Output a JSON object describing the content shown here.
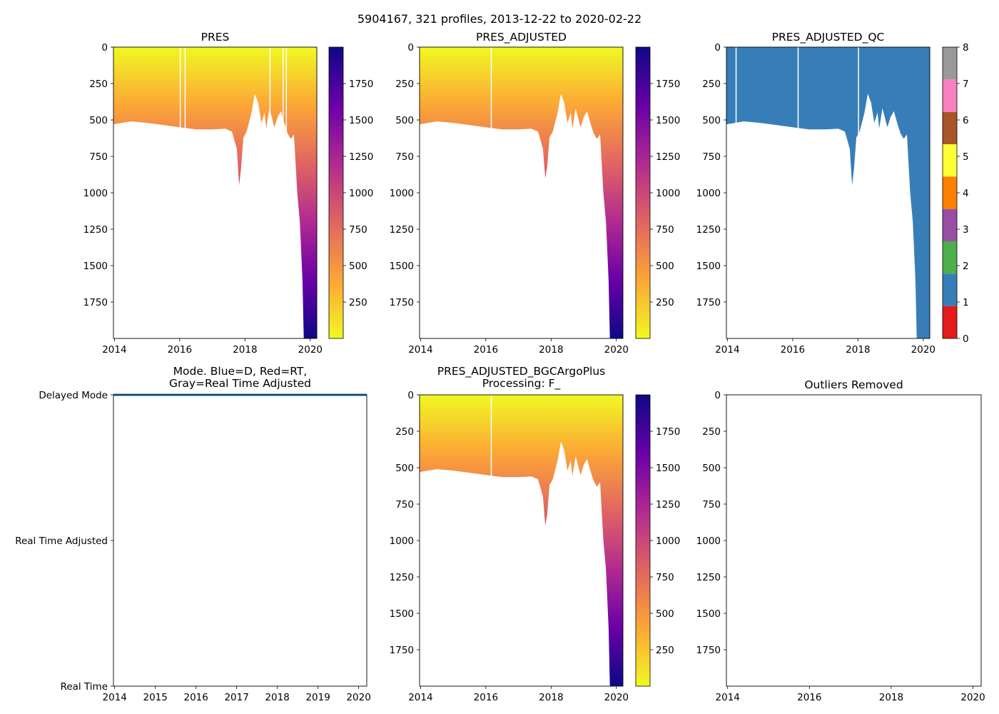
{
  "figure": {
    "title": "5904167, 321 profiles, 2013-12-22 to 2020-02-22"
  },
  "colors": {
    "plasma": [
      "#0d0887",
      "#6a00a8",
      "#b12a90",
      "#e16462",
      "#fca636",
      "#f0f921"
    ],
    "qc": [
      "#e41a1c",
      "#377eb8",
      "#4daf4a",
      "#984ea3",
      "#ff7f00",
      "#ffff33",
      "#a65628",
      "#f781bf",
      "#999999"
    ],
    "qc_good": "#377eb8",
    "mode_line": "#1f77b4"
  },
  "chart_data": [
    {
      "id": "pres",
      "type": "heatmap",
      "title": "PRES",
      "xlim": [
        2013.97,
        2020.2
      ],
      "xticks": [
        "2014",
        "2016",
        "2018",
        "2020"
      ],
      "ylim": [
        2000,
        0
      ],
      "yticks": [
        "0",
        "250",
        "500",
        "750",
        "1000",
        "1250",
        "1500",
        "1750"
      ],
      "colorbar": {
        "cmap": "plasma",
        "range": [
          0,
          2000
        ],
        "ticks": [
          "250",
          "500",
          "750",
          "1000",
          "1250",
          "1500",
          "1750"
        ]
      },
      "gaps": [
        2016.0,
        2016.15,
        2018.75,
        2019.15,
        2019.25
      ],
      "max_depth_profile": {
        "t": [
          2013.97,
          2014.5,
          2015.0,
          2015.5,
          2016.0,
          2016.5,
          2017.0,
          2017.4,
          2017.6,
          2017.75,
          2017.82,
          2017.88,
          2017.95,
          2018.05,
          2018.2,
          2018.3,
          2018.4,
          2018.5,
          2018.6,
          2018.65,
          2018.75,
          2018.9,
          2019.0,
          2019.1,
          2019.2,
          2019.3,
          2019.4,
          2019.5,
          2019.6,
          2019.68,
          2019.72,
          2019.76,
          2019.8,
          2019.85,
          2020.2
        ],
        "depth": [
          530,
          510,
          520,
          535,
          550,
          565,
          565,
          560,
          580,
          700,
          950,
          830,
          620,
          580,
          450,
          320,
          380,
          520,
          450,
          560,
          420,
          550,
          480,
          440,
          520,
          590,
          630,
          600,
          1000,
          1200,
          1400,
          1600,
          2000,
          2000,
          2000
        ]
      }
    },
    {
      "id": "pres_adj",
      "type": "heatmap",
      "title": "PRES_ADJUSTED",
      "xlim": [
        2013.97,
        2020.2
      ],
      "xticks": [
        "2014",
        "2016",
        "2018",
        "2020"
      ],
      "ylim": [
        2000,
        0
      ],
      "yticks": [
        "0",
        "250",
        "500",
        "750",
        "1000",
        "1250",
        "1500",
        "1750"
      ],
      "colorbar": {
        "cmap": "plasma",
        "range": [
          0,
          2000
        ],
        "ticks": [
          "250",
          "500",
          "750",
          "1000",
          "1250",
          "1500",
          "1750"
        ]
      },
      "gaps": [
        2016.15
      ],
      "max_depth_profile": {
        "t": [
          2013.97,
          2014.5,
          2015.0,
          2015.5,
          2016.0,
          2016.5,
          2017.0,
          2017.4,
          2017.6,
          2017.75,
          2017.82,
          2017.88,
          2017.95,
          2018.05,
          2018.2,
          2018.3,
          2018.4,
          2018.5,
          2018.6,
          2018.65,
          2018.75,
          2018.9,
          2019.0,
          2019.1,
          2019.2,
          2019.3,
          2019.4,
          2019.5,
          2019.6,
          2019.68,
          2019.72,
          2019.76,
          2019.8,
          2019.85,
          2020.2
        ],
        "depth": [
          530,
          510,
          520,
          535,
          550,
          565,
          565,
          560,
          580,
          700,
          900,
          820,
          620,
          580,
          450,
          320,
          380,
          520,
          450,
          560,
          420,
          550,
          480,
          440,
          520,
          590,
          630,
          600,
          1000,
          1200,
          1400,
          1600,
          2000,
          2000,
          2000
        ]
      }
    },
    {
      "id": "pres_qc",
      "type": "heatmap",
      "title": "PRES_ADJUSTED_QC",
      "xlim": [
        2013.97,
        2020.2
      ],
      "xticks": [
        "2014",
        "2016",
        "2018",
        "2020"
      ],
      "ylim": [
        2000,
        0
      ],
      "yticks": [
        "0",
        "250",
        "500",
        "750",
        "1000",
        "1250",
        "1500",
        "1750"
      ],
      "colorbar": {
        "cmap": "qc",
        "range": [
          0,
          8
        ],
        "ticks": [
          "0",
          "1",
          "2",
          "3",
          "4",
          "5",
          "6",
          "7",
          "8"
        ]
      },
      "qc_value": 1,
      "gaps": [
        2014.25,
        2016.15,
        2018.0
      ],
      "max_depth_profile": {
        "t": [
          2013.97,
          2014.5,
          2015.0,
          2015.5,
          2016.0,
          2016.5,
          2017.0,
          2017.4,
          2017.6,
          2017.75,
          2017.82,
          2017.88,
          2017.95,
          2018.05,
          2018.2,
          2018.3,
          2018.4,
          2018.5,
          2018.6,
          2018.65,
          2018.75,
          2018.9,
          2019.0,
          2019.1,
          2019.2,
          2019.3,
          2019.4,
          2019.5,
          2019.6,
          2019.68,
          2019.72,
          2019.76,
          2019.8,
          2019.85,
          2020.2
        ],
        "depth": [
          530,
          510,
          520,
          535,
          550,
          565,
          565,
          560,
          580,
          700,
          950,
          830,
          620,
          580,
          450,
          320,
          380,
          520,
          450,
          560,
          420,
          550,
          480,
          440,
          520,
          590,
          630,
          600,
          1000,
          1200,
          1400,
          1600,
          2000,
          2000,
          2000
        ]
      }
    },
    {
      "id": "mode",
      "type": "line",
      "title_lines": [
        "Mode. Blue=D, Red=RT,",
        "Gray=Real Time Adjusted"
      ],
      "xlim": [
        2013.97,
        2020.2
      ],
      "xticks": [
        "2014",
        "2015",
        "2016",
        "2017",
        "2018",
        "2019",
        "2020"
      ],
      "categories": [
        "Real Time",
        "Real Time Adjusted",
        "Delayed Mode"
      ],
      "series": [
        {
          "name": "Delayed Mode",
          "x": [
            2013.97,
            2020.2
          ],
          "y": [
            2,
            2
          ]
        }
      ]
    },
    {
      "id": "bgc",
      "type": "heatmap",
      "title_lines": [
        "PRES_ADJUSTED_BGCArgoPlus",
        "Processing: F_"
      ],
      "xlim": [
        2013.97,
        2020.2
      ],
      "xticks": [
        "2014",
        "2016",
        "2018",
        "2020"
      ],
      "ylim": [
        2000,
        0
      ],
      "yticks": [
        "0",
        "250",
        "500",
        "750",
        "1000",
        "1250",
        "1500",
        "1750"
      ],
      "colorbar": {
        "cmap": "plasma",
        "range": [
          0,
          2000
        ],
        "ticks": [
          "250",
          "500",
          "750",
          "1000",
          "1250",
          "1500",
          "1750"
        ]
      },
      "gaps": [
        2016.15
      ],
      "max_depth_profile": {
        "t": [
          2013.97,
          2014.5,
          2015.0,
          2015.5,
          2016.0,
          2016.5,
          2017.0,
          2017.4,
          2017.6,
          2017.75,
          2017.82,
          2017.88,
          2017.95,
          2018.05,
          2018.2,
          2018.3,
          2018.4,
          2018.5,
          2018.6,
          2018.65,
          2018.75,
          2018.9,
          2019.0,
          2019.1,
          2019.2,
          2019.3,
          2019.4,
          2019.5,
          2019.6,
          2019.68,
          2019.72,
          2019.76,
          2019.8,
          2019.85,
          2020.2
        ],
        "depth": [
          530,
          510,
          520,
          535,
          550,
          565,
          565,
          560,
          580,
          700,
          900,
          820,
          620,
          580,
          450,
          320,
          380,
          520,
          450,
          560,
          420,
          550,
          480,
          440,
          520,
          590,
          630,
          600,
          1000,
          1200,
          1400,
          1600,
          2000,
          2000,
          2000
        ]
      }
    },
    {
      "id": "outliers",
      "type": "scatter",
      "title": "Outliers Removed",
      "xlim": [
        2013.97,
        2020.2
      ],
      "xticks": [
        "2014",
        "2016",
        "2018",
        "2020"
      ],
      "ylim": [
        2000,
        0
      ],
      "yticks": [
        "0",
        "250",
        "500",
        "750",
        "1000",
        "1250",
        "1500",
        "1750"
      ],
      "points": []
    }
  ]
}
